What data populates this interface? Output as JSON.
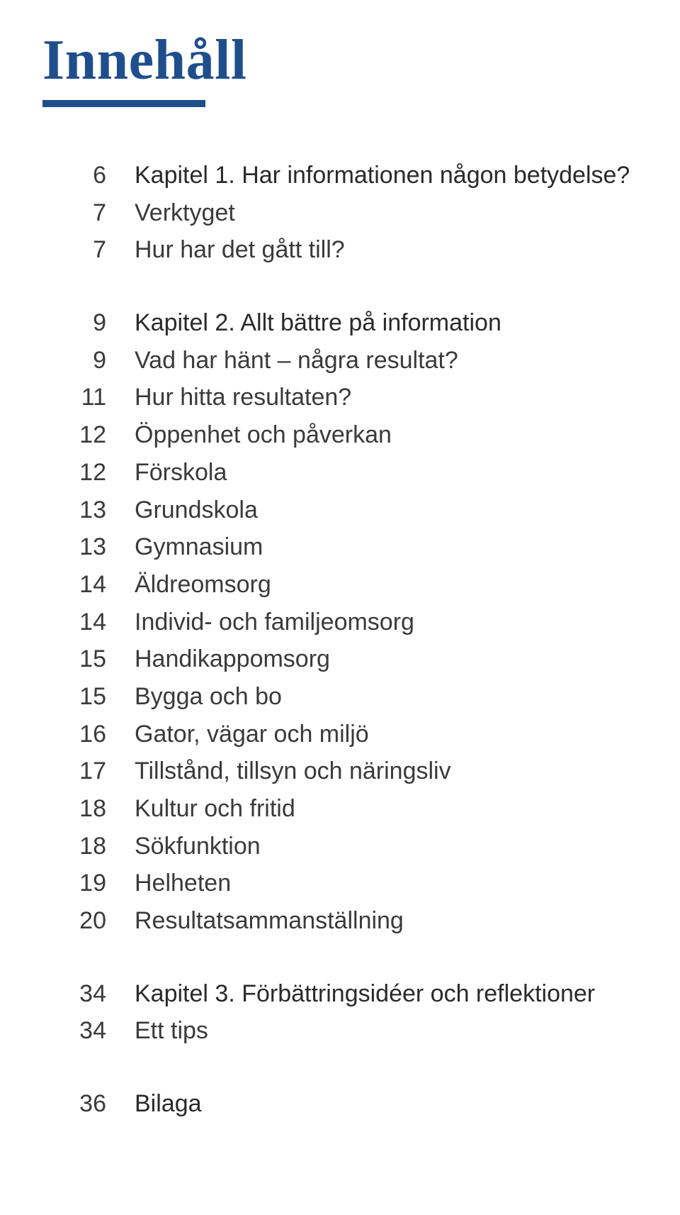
{
  "page_title": "Innehåll",
  "colors": {
    "accent": "#1f4e8c",
    "text": "#3a3a3a",
    "background": "#ffffff"
  },
  "typography": {
    "title_font": "Georgia serif",
    "title_size_pt": 60,
    "body_font": "Segoe UI / Helvetica light",
    "body_size_pt": 26
  },
  "groups": [
    {
      "items": [
        {
          "page": "6",
          "label": "Kapitel 1. Har informationen någon betydelse?",
          "chapter": true
        },
        {
          "page": "7",
          "label": "Verktyget",
          "chapter": false
        },
        {
          "page": "7",
          "label": "Hur har det gått till?",
          "chapter": false
        }
      ]
    },
    {
      "items": [
        {
          "page": "9",
          "label": "Kapitel 2. Allt bättre på information",
          "chapter": true
        },
        {
          "page": "9",
          "label": "Vad har hänt – några resultat?",
          "chapter": false
        },
        {
          "page": "11",
          "label": "Hur hitta resultaten?",
          "chapter": false
        },
        {
          "page": "12",
          "label": "Öppenhet och påverkan",
          "chapter": false
        },
        {
          "page": "12",
          "label": "Förskola",
          "chapter": false
        },
        {
          "page": "13",
          "label": "Grundskola",
          "chapter": false
        },
        {
          "page": "13",
          "label": "Gymnasium",
          "chapter": false
        },
        {
          "page": "14",
          "label": "Äldreomsorg",
          "chapter": false
        },
        {
          "page": "14",
          "label": "Individ- och familjeomsorg",
          "chapter": false
        },
        {
          "page": "15",
          "label": "Handikappomsorg",
          "chapter": false
        },
        {
          "page": "15",
          "label": "Bygga och bo",
          "chapter": false
        },
        {
          "page": "16",
          "label": "Gator, vägar och miljö",
          "chapter": false
        },
        {
          "page": "17",
          "label": "Tillstånd, tillsyn och näringsliv",
          "chapter": false
        },
        {
          "page": "18",
          "label": "Kultur och fritid",
          "chapter": false
        },
        {
          "page": "18",
          "label": "Sökfunktion",
          "chapter": false
        },
        {
          "page": "19",
          "label": "Helheten",
          "chapter": false
        },
        {
          "page": "20",
          "label": "Resultatsammanställning",
          "chapter": false
        }
      ]
    },
    {
      "items": [
        {
          "page": "34",
          "label": "Kapitel 3. Förbättringsidéer och reflektioner",
          "chapter": true
        },
        {
          "page": "34",
          "label": "Ett tips",
          "chapter": false
        }
      ]
    },
    {
      "items": [
        {
          "page": "36",
          "label": "Bilaga",
          "chapter": true
        }
      ]
    }
  ]
}
